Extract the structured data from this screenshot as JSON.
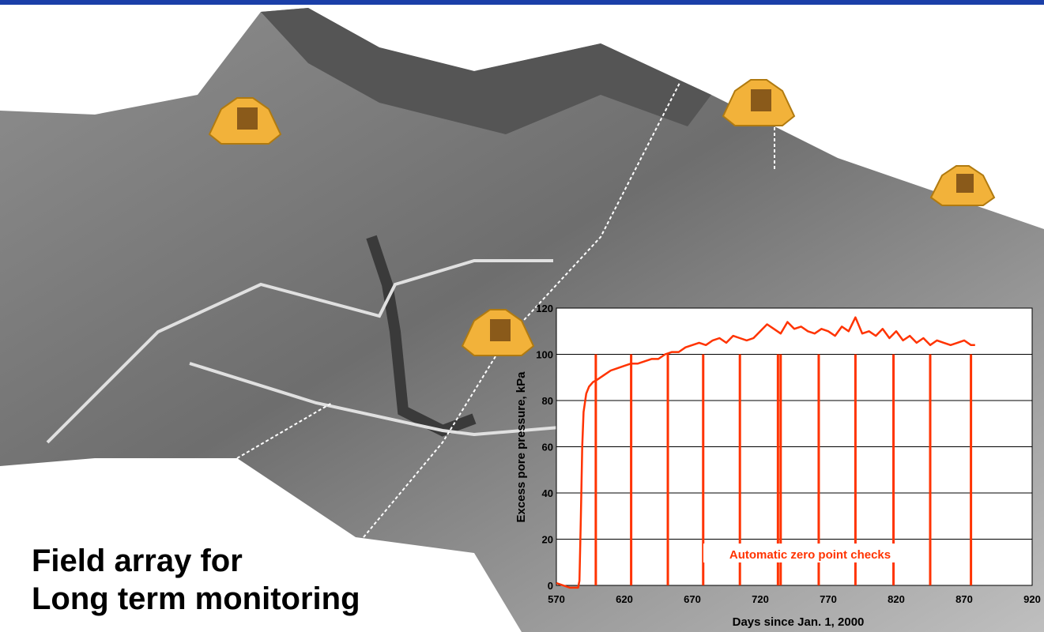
{
  "colors": {
    "series": "#ff3300",
    "accent_bar": "#1b3fa8",
    "plot_bg": "#ffffff"
  },
  "slide": {
    "title_line1": "Field array for",
    "title_line2": "Long term monitoring"
  },
  "chart_data": {
    "type": "line",
    "title": "",
    "xlabel": "Days since Jan. 1, 2000",
    "ylabel": "Excess pore pressure,  kPa",
    "xlim": [
      570,
      920
    ],
    "ylim": [
      0,
      120
    ],
    "x_ticks": [
      570,
      620,
      670,
      720,
      770,
      820,
      870,
      920
    ],
    "y_ticks": [
      0,
      20,
      40,
      60,
      80,
      100,
      120
    ],
    "grid": "horizontal",
    "annotation": "Automatic zero point checks",
    "series": [
      {
        "x": [
          570,
          575,
          580,
          583,
          586,
          587,
          588,
          589,
          590,
          592,
          594,
          597,
          600,
          605,
          610,
          615,
          620,
          625,
          630,
          635,
          640,
          645,
          650,
          655,
          660,
          665,
          670,
          675,
          680,
          685,
          690,
          695,
          700,
          705,
          710,
          715,
          720,
          725,
          730,
          735,
          740,
          745,
          750,
          755,
          760,
          765,
          770,
          775,
          780,
          785,
          790,
          795,
          800,
          805,
          810,
          815,
          820,
          825,
          830,
          835,
          840,
          845,
          850,
          855,
          860,
          865,
          870,
          875,
          878
        ],
        "y": [
          1,
          0,
          -1,
          -1,
          -1,
          2,
          30,
          60,
          75,
          83,
          86,
          88,
          89,
          91,
          93,
          94,
          95,
          96,
          96,
          97,
          98,
          98,
          100,
          101,
          101,
          103,
          104,
          105,
          104,
          106,
          107,
          105,
          108,
          107,
          106,
          107,
          110,
          113,
          111,
          109,
          114,
          111,
          112,
          110,
          109,
          111,
          110,
          108,
          112,
          110,
          116,
          109,
          110,
          108,
          111,
          107,
          110,
          106,
          108,
          105,
          107,
          104,
          106,
          105,
          104,
          105,
          106,
          104,
          104
        ]
      }
    ],
    "zero_checks": [
      599,
      625,
      652,
      678,
      705,
      733,
      735,
      763,
      790,
      818,
      845,
      875
    ]
  }
}
